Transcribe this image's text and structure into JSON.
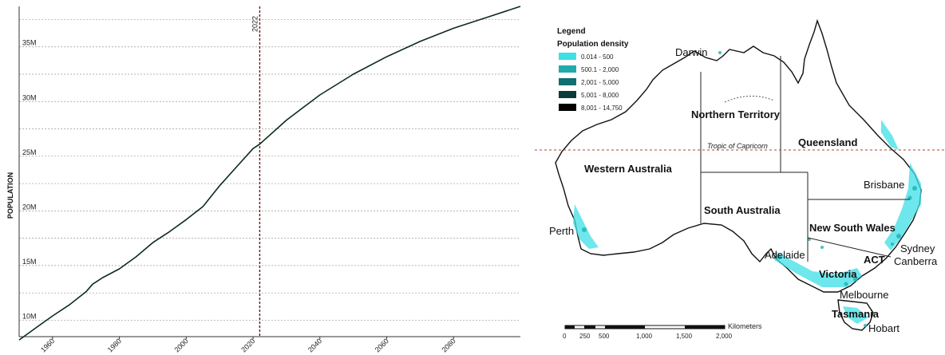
{
  "chart_data": {
    "type": "line",
    "ylabel": "POPULATION",
    "x_ticks": [
      "1960",
      "1980",
      "2000",
      "2020",
      "2040",
      "2060",
      "2080"
    ],
    "x_tick_values": [
      1960,
      1980,
      2000,
      2020,
      2040,
      2060,
      2080
    ],
    "y_ticks": [
      "10M",
      "15M",
      "20M",
      "25M",
      "30M",
      "35M"
    ],
    "y_tick_values": [
      10,
      15,
      20,
      25,
      30,
      35
    ],
    "xlim": [
      1950,
      2100
    ],
    "ylim": [
      8.5,
      38.7
    ],
    "grid": "horizontal dashed",
    "marker": {
      "label": "2022",
      "x": 2022
    },
    "series": [
      {
        "color": "#0e2a1e",
        "x": [
          1950,
          1955,
          1960,
          1965,
          1970,
          1972,
          1975,
          1980,
          1985,
          1990,
          1995,
          2000,
          2005,
          2010,
          2015,
          2020,
          2022,
          2030,
          2040,
          2050,
          2060,
          2070,
          2080,
          2090,
          2100
        ],
        "y": [
          8.2,
          9.3,
          10.4,
          11.4,
          12.6,
          13.3,
          13.9,
          14.7,
          15.8,
          17.1,
          18.1,
          19.2,
          20.4,
          22.3,
          24.0,
          25.7,
          26.1,
          28.3,
          30.6,
          32.5,
          34.1,
          35.5,
          36.7,
          37.7,
          38.7
        ]
      }
    ]
  },
  "map": {
    "legend": {
      "title": "Legend",
      "subtitle": "Population density",
      "items": [
        {
          "label": "0.014 - 500",
          "color": "#3de0e6"
        },
        {
          "label": "500.1 - 2,000",
          "color": "#20aaae"
        },
        {
          "label": "2,001 - 5,000",
          "color": "#0f6f72"
        },
        {
          "label": "5,001 - 8,000",
          "color": "#0a3b3b"
        },
        {
          "label": "8,001 - 14,750",
          "color": "#000000"
        }
      ]
    },
    "states": {
      "nt": "Northern Territory",
      "qld": "Queensland",
      "wa": "Western Australia",
      "sa": "South Australia",
      "nsw": "New South Wales",
      "act": "ACT",
      "vic": "Victoria",
      "tas": "Tasmania"
    },
    "cities": {
      "darwin": "Darwin",
      "brisbane": "Brisbane",
      "perth": "Perth",
      "sydney": "Sydney",
      "canberra": "Canberra",
      "adelaide": "Adelaide",
      "melbourne": "Melbourne",
      "hobart": "Hobart"
    },
    "tropic_label": "Tropic of Capricorn",
    "scale": {
      "unit": "Kilometers",
      "ticks": [
        "0",
        "250",
        "500",
        "1,000",
        "1,500",
        "2,000"
      ]
    }
  }
}
